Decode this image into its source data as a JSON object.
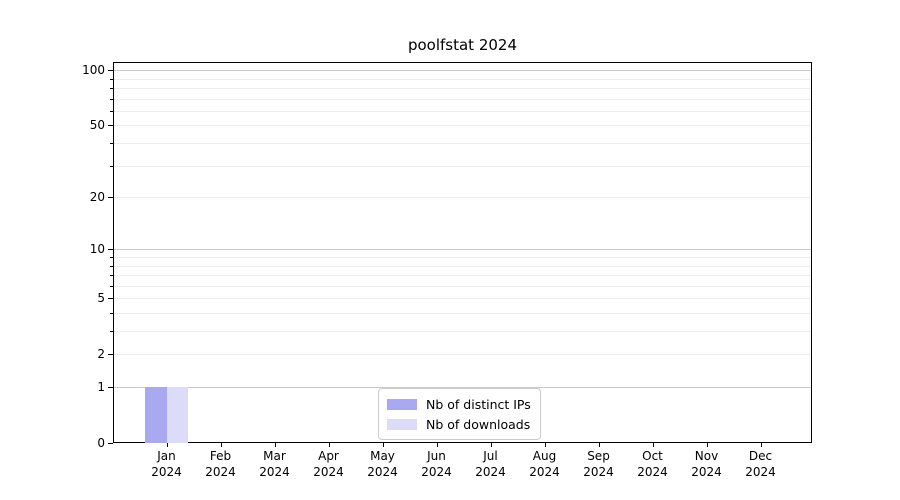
{
  "chart_data": {
    "type": "bar",
    "title": "poolfstat 2024",
    "categories": [
      "Jan",
      "Feb",
      "Mar",
      "Apr",
      "May",
      "Jun",
      "Jul",
      "Aug",
      "Sep",
      "Oct",
      "Nov",
      "Dec"
    ],
    "year_label": "2024",
    "series": [
      {
        "name": "Nb of distinct IPs",
        "color": "#a9a9f2",
        "values": [
          1,
          0,
          0,
          0,
          0,
          0,
          0,
          0,
          0,
          0,
          0,
          0
        ]
      },
      {
        "name": "Nb of downloads",
        "color": "#dcdcf8",
        "values": [
          1,
          0,
          0,
          0,
          0,
          0,
          0,
          0,
          0,
          0,
          0,
          0
        ]
      }
    ],
    "xlabel": "",
    "ylabel": "",
    "yscale": "log1p",
    "ylim": [
      0,
      112
    ],
    "yticks": [
      0,
      1,
      2,
      5,
      10,
      20,
      50,
      100
    ],
    "yticks_minor": [
      3,
      4,
      6,
      7,
      8,
      9,
      30,
      40,
      60,
      70,
      80,
      90
    ],
    "grid": "both",
    "legend_position": "lower center",
    "colors": {
      "decade_gridline": "#c9c9c9",
      "minor_gridline": "#ededed",
      "spine": "#000000"
    }
  }
}
